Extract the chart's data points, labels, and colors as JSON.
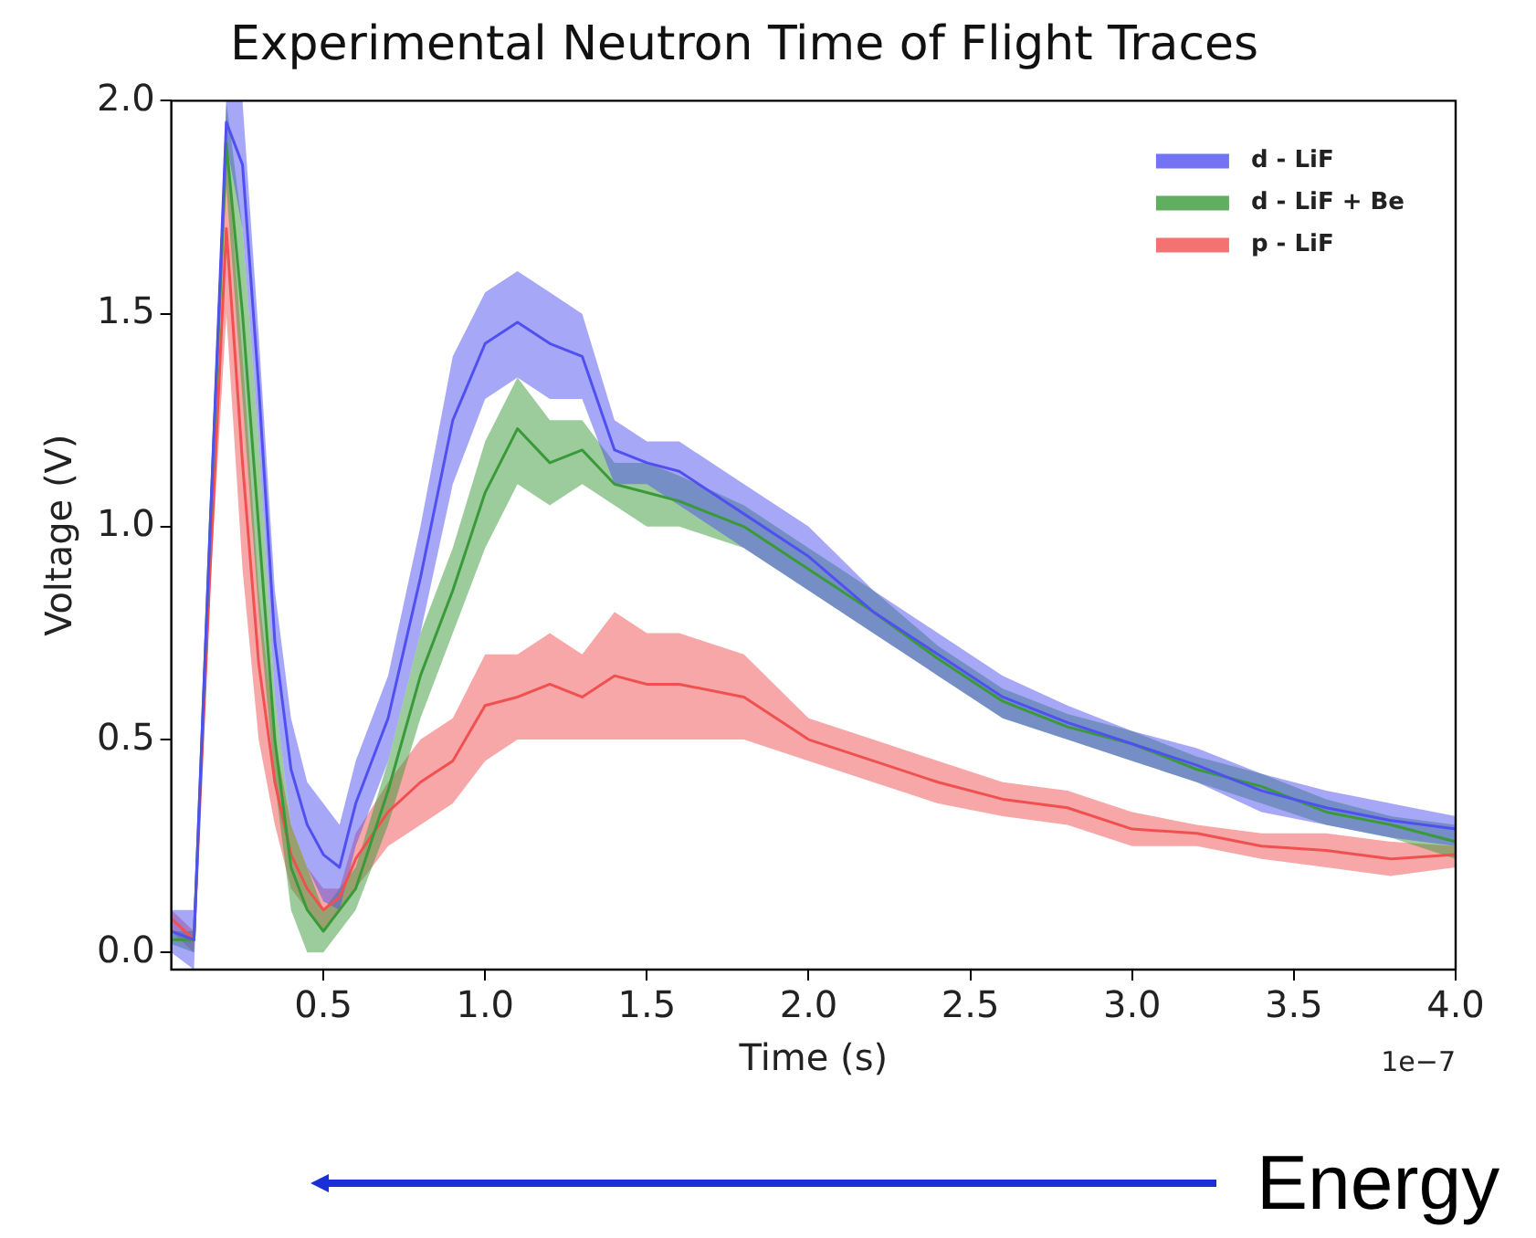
{
  "chart_data": {
    "type": "line",
    "title": "Experimental Neutron Time of Flight Traces",
    "xlabel": "Time (s)",
    "ylabel": "Voltage (V)",
    "xlim": [
      0.03,
      4.0
    ],
    "ylim": [
      -0.04,
      2.0
    ],
    "xticks": [
      {
        "value": 0.5,
        "label": "0.5"
      },
      {
        "value": 1.0,
        "label": "1.0"
      },
      {
        "value": 1.5,
        "label": "1.5"
      },
      {
        "value": 2.0,
        "label": "2.0"
      },
      {
        "value": 2.5,
        "label": "2.5"
      },
      {
        "value": 3.0,
        "label": "3.0"
      },
      {
        "value": 3.5,
        "label": "3.5"
      },
      {
        "value": 4.0,
        "label": "4.0"
      }
    ],
    "yticks": [
      {
        "value": 0,
        "label": "0.0"
      },
      {
        "value": 0.5,
        "label": "0.5"
      },
      {
        "value": 1.0,
        "label": "1.0"
      },
      {
        "value": 1.5,
        "label": "1.5"
      },
      {
        "value": 2.0,
        "label": "2.0"
      }
    ],
    "x": [
      0.03,
      0.1,
      0.15,
      0.2,
      0.25,
      0.3,
      0.35,
      0.4,
      0.45,
      0.5,
      0.55,
      0.6,
      0.7,
      0.8,
      0.9,
      1.0,
      1.1,
      1.2,
      1.3,
      1.4,
      1.5,
      1.6,
      1.8,
      2.0,
      2.2,
      2.4,
      2.6,
      2.8,
      3.0,
      3.2,
      3.4,
      3.6,
      3.8,
      4.0
    ],
    "series": [
      {
        "name": "d - LiF",
        "color": "#5050f0",
        "values": [
          0.05,
          0.03,
          1.0,
          1.95,
          1.85,
          1.33,
          0.73,
          0.43,
          0.3,
          0.23,
          0.2,
          0.35,
          0.55,
          0.88,
          1.25,
          1.43,
          1.48,
          1.43,
          1.4,
          1.18,
          1.15,
          1.13,
          1.03,
          0.93,
          0.8,
          0.7,
          0.6,
          0.54,
          0.49,
          0.44,
          0.38,
          0.34,
          0.31,
          0.29
        ],
        "lower": [
          0.0,
          -0.04,
          0.95,
          1.9,
          1.7,
          1.2,
          0.6,
          0.3,
          0.2,
          0.12,
          0.1,
          0.25,
          0.45,
          0.75,
          1.1,
          1.3,
          1.35,
          1.3,
          1.3,
          1.1,
          1.1,
          1.05,
          0.95,
          0.85,
          0.75,
          0.65,
          0.55,
          0.5,
          0.45,
          0.4,
          0.33,
          0.3,
          0.27,
          0.25
        ],
        "upper": [
          0.1,
          0.1,
          1.05,
          2.0,
          2.0,
          1.45,
          0.85,
          0.55,
          0.4,
          0.35,
          0.3,
          0.45,
          0.65,
          1.0,
          1.4,
          1.55,
          1.6,
          1.55,
          1.5,
          1.25,
          1.2,
          1.2,
          1.1,
          1.0,
          0.85,
          0.75,
          0.65,
          0.58,
          0.52,
          0.48,
          0.42,
          0.38,
          0.35,
          0.32
        ]
      },
      {
        "name": "d - LiF + Be",
        "color": "#3a9a3a",
        "values": [
          0.03,
          0.03,
          1.0,
          1.9,
          1.5,
          1.0,
          0.5,
          0.2,
          0.1,
          0.05,
          0.1,
          0.15,
          0.38,
          0.65,
          0.85,
          1.08,
          1.23,
          1.15,
          1.18,
          1.1,
          1.08,
          1.06,
          1.0,
          0.9,
          0.8,
          0.69,
          0.59,
          0.53,
          0.49,
          0.43,
          0.39,
          0.33,
          0.3,
          0.26
        ],
        "lower": [
          0.02,
          0.0,
          0.95,
          1.8,
          1.3,
          0.8,
          0.4,
          0.1,
          0.0,
          0.0,
          0.05,
          0.1,
          0.3,
          0.55,
          0.75,
          0.95,
          1.1,
          1.05,
          1.1,
          1.05,
          1.0,
          1.0,
          0.95,
          0.85,
          0.75,
          0.65,
          0.55,
          0.5,
          0.45,
          0.4,
          0.35,
          0.3,
          0.27,
          0.22
        ],
        "upper": [
          0.05,
          0.05,
          1.05,
          2.0,
          1.7,
          1.2,
          0.6,
          0.3,
          0.2,
          0.1,
          0.15,
          0.2,
          0.45,
          0.75,
          0.95,
          1.2,
          1.35,
          1.25,
          1.25,
          1.15,
          1.15,
          1.12,
          1.05,
          0.95,
          0.85,
          0.72,
          0.62,
          0.56,
          0.52,
          0.46,
          0.42,
          0.36,
          0.32,
          0.3
        ]
      },
      {
        "name": "p - LiF",
        "color": "#f05050",
        "values": [
          0.08,
          0.03,
          0.9,
          1.7,
          1.15,
          0.68,
          0.4,
          0.23,
          0.15,
          0.1,
          0.13,
          0.22,
          0.33,
          0.4,
          0.45,
          0.58,
          0.6,
          0.63,
          0.6,
          0.65,
          0.63,
          0.63,
          0.6,
          0.5,
          0.45,
          0.4,
          0.36,
          0.34,
          0.29,
          0.28,
          0.25,
          0.24,
          0.22,
          0.23
        ],
        "lower": [
          0.05,
          0.0,
          0.85,
          1.5,
          0.9,
          0.5,
          0.3,
          0.15,
          0.1,
          0.05,
          0.1,
          0.15,
          0.25,
          0.3,
          0.35,
          0.45,
          0.5,
          0.5,
          0.5,
          0.5,
          0.5,
          0.5,
          0.5,
          0.45,
          0.4,
          0.35,
          0.32,
          0.3,
          0.25,
          0.25,
          0.22,
          0.2,
          0.18,
          0.2
        ],
        "upper": [
          0.1,
          0.05,
          0.95,
          1.9,
          1.4,
          0.85,
          0.5,
          0.3,
          0.2,
          0.15,
          0.15,
          0.28,
          0.4,
          0.5,
          0.55,
          0.7,
          0.7,
          0.75,
          0.7,
          0.8,
          0.75,
          0.75,
          0.7,
          0.55,
          0.5,
          0.45,
          0.4,
          0.38,
          0.33,
          0.3,
          0.28,
          0.28,
          0.26,
          0.25
        ]
      }
    ],
    "legend": "top right",
    "grid": false,
    "marker": "none",
    "line_style": "solid",
    "annotations": [
      "1e−7",
      "Energy"
    ]
  }
}
